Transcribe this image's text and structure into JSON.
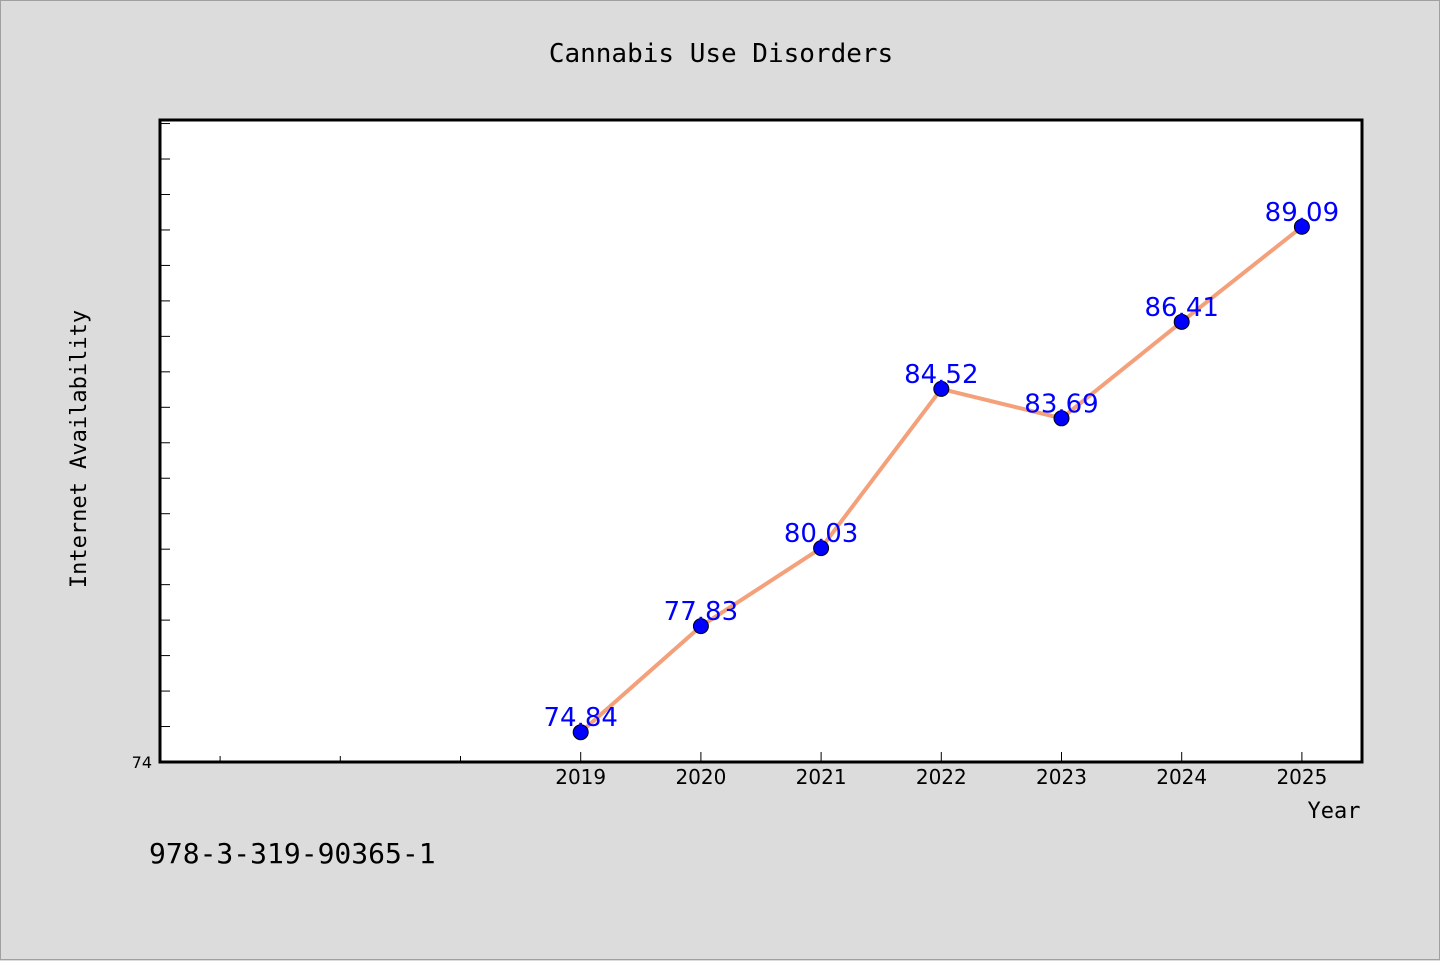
{
  "chart_data": {
    "type": "line",
    "title": "Cannabis Use Disorders",
    "xlabel": "Year",
    "ylabel": "Internet Availability",
    "x": [
      "2019",
      "2020",
      "2021",
      "2022",
      "2023",
      "2024",
      "2025"
    ],
    "series": [
      {
        "values": [
          74.84,
          77.83,
          80.03,
          84.52,
          83.69,
          86.41,
          89.09
        ]
      }
    ],
    "data_labels": [
      "74.84",
      "77.83",
      "80.03",
      "84.52",
      "83.69",
      "86.41",
      "89.09"
    ],
    "y_tick_labels": [
      "74"
    ],
    "xlim": [
      2015.5,
      2025.5
    ],
    "ylim": [
      74,
      92.1
    ],
    "minor_x_ticks": [
      2016,
      2017,
      2018
    ],
    "y_minor_step": 1,
    "grid": false,
    "legend": "none",
    "colors": {
      "line": "#f4a07a",
      "marker": "#0000ff",
      "label": "#0000ff",
      "plot_bg": "#ffffff",
      "figure_bg": "#dcdcdc"
    }
  },
  "footer_text": "978-3-319-90365-1"
}
